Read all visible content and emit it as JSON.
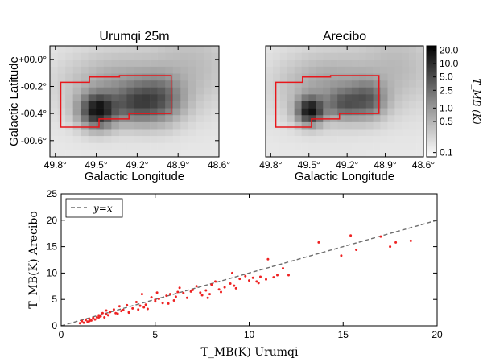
{
  "chart_data": [
    {
      "type": "heatmap",
      "title": "Urumqi 25m",
      "xlabel": "Galactic Longitude",
      "ylabel": "Galactic Latitude",
      "xticks": [
        "49.8°",
        "49.5°",
        "49.2°",
        "48.9°",
        "48.6°"
      ],
      "yticks": [
        "+00.0°",
        "-00.2°",
        "-00.4°",
        "-00.6°"
      ],
      "xlim": [
        49.84,
        48.6
      ],
      "ylim": [
        -0.72,
        0.1
      ],
      "grid": false
    },
    {
      "type": "heatmap",
      "title": "Arecibo",
      "xlabel": "Galactic Longitude",
      "xticks": [
        "49.8°",
        "49.5°",
        "49.2°",
        "48.9°",
        "48.6°"
      ],
      "xlim": [
        49.84,
        48.6
      ],
      "ylim": [
        -0.72,
        0.1
      ],
      "colorbar": {
        "label": "T_MB (K)",
        "scale": "log",
        "ticks": [
          "20.0",
          "10.0",
          "5.0",
          "2.5",
          "1.0",
          "0.5",
          "0.1"
        ]
      }
    },
    {
      "type": "scatter",
      "xlabel": "T_MB(K) Urumqi",
      "ylabel": "T_MB(K) Arecibo",
      "xlim": [
        0,
        20
      ],
      "ylim": [
        0,
        25
      ],
      "xticks": [
        0,
        5,
        10,
        15,
        20
      ],
      "yticks": [
        0,
        5,
        10,
        15,
        20,
        25
      ],
      "legend": {
        "position": "top-left",
        "label": "y=x"
      },
      "grid": false,
      "x": [
        1.0,
        1.1,
        1.2,
        1.3,
        1.4,
        1.5,
        1.6,
        1.7,
        1.8,
        1.9,
        2.0,
        2.1,
        2.2,
        2.3,
        2.4,
        2.4,
        2.5,
        2.6,
        2.8,
        3.0,
        3.1,
        3.2,
        3.3,
        3.5,
        3.6,
        3.8,
        4.0,
        4.1,
        4.2,
        4.3,
        4.5,
        4.6,
        4.8,
        5.0,
        5.1,
        5.2,
        5.4,
        5.6,
        5.8,
        6.0,
        6.1,
        6.3,
        6.5,
        6.7,
        7.0,
        7.2,
        7.4,
        7.5,
        7.7,
        7.9,
        8.0,
        8.2,
        8.5,
        8.7,
        9.0,
        9.1,
        9.3,
        9.5,
        9.8,
        10.0,
        10.2,
        10.4,
        10.6,
        10.9,
        11.0,
        11.3,
        11.8,
        12.1,
        13.7,
        14.9,
        15.4,
        15.7,
        17.0,
        17.5,
        17.8,
        18.6,
        1.5,
        2.0,
        2.9,
        3.6,
        4.4,
        5.0,
        5.7,
        6.2,
        6.9,
        7.8,
        8.4,
        9.2,
        10.5,
        11.5
      ],
      "y": [
        0.5,
        0.9,
        0.6,
        1.1,
        0.8,
        1.3,
        1.0,
        1.5,
        1.2,
        1.6,
        2.0,
        1.8,
        2.4,
        1.6,
        2.9,
        2.2,
        2.0,
        2.6,
        3.1,
        2.3,
        3.7,
        2.8,
        3.0,
        3.9,
        2.6,
        3.3,
        4.5,
        3.1,
        3.8,
        6.0,
        4.0,
        3.2,
        5.4,
        4.6,
        6.3,
        5.1,
        4.3,
        5.7,
        6.0,
        4.8,
        5.5,
        7.2,
        6.2,
        5.3,
        6.8,
        7.5,
        6.3,
        5.8,
        6.7,
        6.0,
        7.8,
        8.4,
        6.4,
        7.3,
        8.0,
        10.0,
        7.1,
        8.9,
        9.4,
        8.6,
        9.1,
        8.4,
        9.3,
        8.8,
        12.6,
        9.2,
        10.9,
        9.6,
        15.8,
        13.3,
        17.1,
        14.4,
        16.9,
        15.0,
        15.8,
        16.1,
        0.9,
        1.6,
        2.4,
        2.5,
        3.5,
        4.9,
        4.2,
        6.4,
        6.5,
        5.3,
        6.9,
        7.6,
        8.1,
        9.6
      ]
    }
  ]
}
